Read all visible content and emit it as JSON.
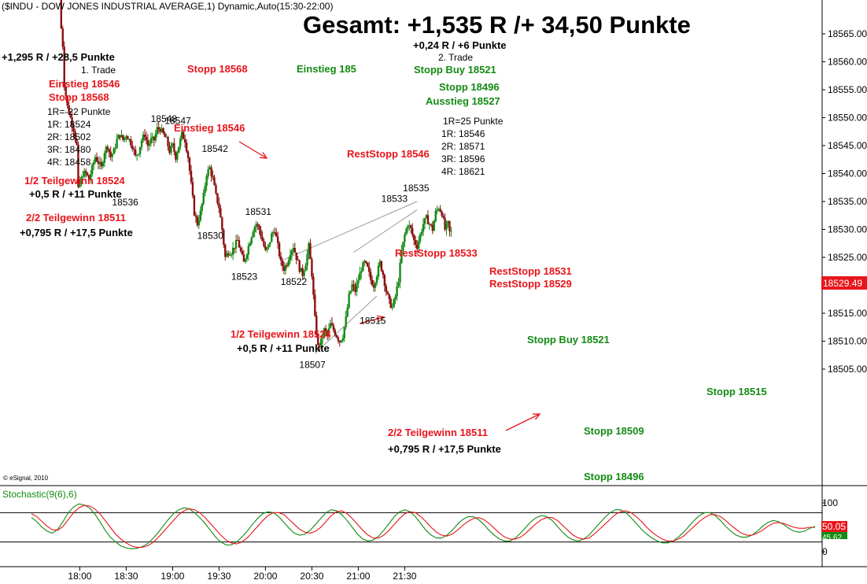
{
  "header": {
    "instrument": "($INDU - DOW JONES INDUSTRIAL AVERAGE,1) Dynamic,Auto(15:30-22:00)",
    "summary": "Gesamt: +1,535 R /+ 34,50 Punkte",
    "copyright": "© eSignal, 2010"
  },
  "colors": {
    "up_candle": "#138a13",
    "down_candle": "#8b1010",
    "stoch_k": "#138a13",
    "stoch_d": "#e8151b",
    "annotation_red": "#e8151b",
    "annotation_green": "#138a13",
    "current_price_bg": "#e8151b"
  },
  "annotations": {
    "t1_result": "+1,295 R / +28,5 Punkte",
    "t1_label": "1. Trade",
    "t1_entry": "Einstieg 18546",
    "t1_stop": "Stopp 18568",
    "t1_r": "1R=-22 Punkte",
    "t1_r1": "1R: 18524",
    "t1_r2": "2R: 18502",
    "t1_r3": "3R: 18480",
    "t1_r4": "4R: 18458",
    "t1_partial1": "1/2 Teilgewinn 18524",
    "t1_partial1_result": "+0,5 R / +11 Punkte",
    "t1_partial2": "2/2 Teilgewinn 18511",
    "t1_partial2_result": "+0,795 R / +17,5 Punkte",
    "stop_18568": "Stopp 18568",
    "entry_185": "Einstieg 185",
    "entry_18546": "Einstieg 18546",
    "t2_result": "+0,24 R / +6 Punkte",
    "t2_label": "2. Trade",
    "t2_stop_buy": "Stopp Buy 18521",
    "t2_stop": "Stopp 18496",
    "t2_exit": "Ausstieg 18527",
    "t2_r": "1R=25 Punkte",
    "t2_r1": "1R: 18546",
    "t2_r2": "2R: 18571",
    "t2_r3": "3R: 18596",
    "t2_r4": "4R: 18621",
    "reststopp_18546": "RestStopp 18546",
    "reststopp_18533": "RestStopp 18533",
    "reststopp_18531": "RestStopp 18531",
    "reststopp_18529": "RestStopp 18529",
    "partial1_mid": "1/2 Teilgewinn 18524",
    "partial1_mid_result": "+0,5 R / +11 Punkte",
    "partial2_mid": "2/2 Teilgewinn 18511",
    "partial2_mid_result": "+0,795 R / +17,5 Punkte",
    "stop_buy_18521": "Stopp Buy 18521",
    "stopp_18509": "Stopp 18509",
    "stopp_18515": "Stopp 18515",
    "stopp_18496": "Stopp 18496"
  },
  "price_labels": [
    {
      "text": "18548",
      "t": "18:54",
      "p": 18549.2
    },
    {
      "text": "18547",
      "t": "19:03",
      "p": 18548.9
    },
    {
      "text": "18536",
      "t": "18:29",
      "p": 18534.3
    },
    {
      "text": "18542",
      "t": "19:27",
      "p": 18543.9
    },
    {
      "text": "18530",
      "t": "19:24",
      "p": 18528.3
    },
    {
      "text": "18531",
      "t": "19:55",
      "p": 18532.6
    },
    {
      "text": "18523",
      "t": "19:46",
      "p": 18521.0
    },
    {
      "text": "18522",
      "t": "20:18",
      "p": 18520.1
    },
    {
      "text": "18507",
      "t": "20:30",
      "p": 18505.2
    },
    {
      "text": "18515",
      "t": "21:09",
      "p": 18513.1
    },
    {
      "text": "18533",
      "t": "21:23",
      "p": 18534.9
    },
    {
      "text": "18535",
      "t": "21:37",
      "p": 18536.8
    }
  ],
  "current_price": "18529.49",
  "stoch": {
    "label": "Stochastic(9(6),6)",
    "value_d": "50.05",
    "value_k": "45.62"
  },
  "chart_data": [
    {
      "type": "candlestick",
      "title": "($INDU - DOW JONES INDUSTRIAL AVERAGE,1) Dynamic,Auto(15:30-22:00)",
      "x_range": [
        "17:30",
        "22:00"
      ],
      "ylim": [
        18501,
        18569
      ],
      "y_ticks": [
        18505,
        18510,
        18515,
        18520,
        18525,
        18530,
        18535,
        18540,
        18545,
        18550,
        18555,
        18560,
        18565
      ],
      "x_ticks": [
        "18:00",
        "18:30",
        "19:00",
        "19:30",
        "20:00",
        "20:30",
        "21:00",
        "21:30"
      ],
      "grid": false,
      "trend_lines": [
        {
          "from": [
            "20:32",
            18507.8
          ],
          "to": [
            "21:12",
            18518.1
          ]
        },
        {
          "from": [
            "20:12",
            18524.6
          ],
          "to": [
            "21:38",
            18535.0
          ]
        },
        {
          "from": [
            "20:57",
            18525.9
          ],
          "to": [
            "21:38",
            18533.5
          ]
        }
      ],
      "path": [
        [
          "17:48",
          18584
        ],
        [
          "17:49",
          18566
        ],
        [
          "17:50",
          18563
        ],
        [
          "17:51",
          18556
        ],
        [
          "17:53",
          18552
        ],
        [
          "17:55",
          18550
        ],
        [
          "17:57",
          18548
        ],
        [
          "17:59",
          18545
        ],
        [
          "18:00",
          18537
        ],
        [
          "18:01",
          18538
        ],
        [
          "18:03",
          18540
        ],
        [
          "18:05",
          18540
        ],
        [
          "18:07",
          18539
        ],
        [
          "18:09",
          18541
        ],
        [
          "18:11",
          18543
        ],
        [
          "18:13",
          18542
        ],
        [
          "18:15",
          18541
        ],
        [
          "18:17",
          18544
        ],
        [
          "18:19",
          18545
        ],
        [
          "18:21",
          18543
        ],
        [
          "18:23",
          18544
        ],
        [
          "18:25",
          18546
        ],
        [
          "18:27",
          18547
        ],
        [
          "18:29",
          18546
        ],
        [
          "18:31",
          18547
        ],
        [
          "18:33",
          18546
        ],
        [
          "18:35",
          18545
        ],
        [
          "18:37",
          18543
        ],
        [
          "18:39",
          18544
        ],
        [
          "18:41",
          18546
        ],
        [
          "18:43",
          18547
        ],
        [
          "18:45",
          18545
        ],
        [
          "18:47",
          18546
        ],
        [
          "18:49",
          18546
        ],
        [
          "18:51",
          18548
        ],
        [
          "18:53",
          18548
        ],
        [
          "18:55",
          18547
        ],
        [
          "18:57",
          18546
        ],
        [
          "18:59",
          18544
        ],
        [
          "19:01",
          18545
        ],
        [
          "19:03",
          18543
        ],
        [
          "19:05",
          18545
        ],
        [
          "19:07",
          18547
        ],
        [
          "19:09",
          18546
        ],
        [
          "19:11",
          18543
        ],
        [
          "19:13",
          18538
        ],
        [
          "19:15",
          18533
        ],
        [
          "19:17",
          18531
        ],
        [
          "19:19",
          18533
        ],
        [
          "19:21",
          18536
        ],
        [
          "19:23",
          18540
        ],
        [
          "19:25",
          18541
        ],
        [
          "19:27",
          18539
        ],
        [
          "19:29",
          18536
        ],
        [
          "19:31",
          18534
        ],
        [
          "19:33",
          18530
        ],
        [
          "19:35",
          18525
        ],
        [
          "19:37",
          18526
        ],
        [
          "19:39",
          18526
        ],
        [
          "19:41",
          18527
        ],
        [
          "19:43",
          18528
        ],
        [
          "19:45",
          18526
        ],
        [
          "19:47",
          18524
        ],
        [
          "19:49",
          18526
        ],
        [
          "19:51",
          18528
        ],
        [
          "19:53",
          18530
        ],
        [
          "19:55",
          18531
        ],
        [
          "19:57",
          18530
        ],
        [
          "19:59",
          18528
        ],
        [
          "20:01",
          18526
        ],
        [
          "20:03",
          18527
        ],
        [
          "20:05",
          18529
        ],
        [
          "20:07",
          18530
        ],
        [
          "20:09",
          18527
        ],
        [
          "20:11",
          18524
        ],
        [
          "20:13",
          18523
        ],
        [
          "20:15",
          18524
        ],
        [
          "20:17",
          18526
        ],
        [
          "20:19",
          18527
        ],
        [
          "20:21",
          18525
        ],
        [
          "20:23",
          18523
        ],
        [
          "20:25",
          18522
        ],
        [
          "20:27",
          18524
        ],
        [
          "20:29",
          18527
        ],
        [
          "20:31",
          18522
        ],
        [
          "20:33",
          18514
        ],
        [
          "20:35",
          18509
        ],
        [
          "20:37",
          18510
        ],
        [
          "20:39",
          18512
        ],
        [
          "20:41",
          18511
        ],
        [
          "20:43",
          18513
        ],
        [
          "20:45",
          18512
        ],
        [
          "20:47",
          18511
        ],
        [
          "20:49",
          18510
        ],
        [
          "20:51",
          18511
        ],
        [
          "20:53",
          18514
        ],
        [
          "20:55",
          18518
        ],
        [
          "20:57",
          18520
        ],
        [
          "20:59",
          18519
        ],
        [
          "21:01",
          18521
        ],
        [
          "21:03",
          18523
        ],
        [
          "21:05",
          18524
        ],
        [
          "21:07",
          18523
        ],
        [
          "21:09",
          18521
        ],
        [
          "21:11",
          18520
        ],
        [
          "21:13",
          18522
        ],
        [
          "21:15",
          18524
        ],
        [
          "21:17",
          18522
        ],
        [
          "21:19",
          18519
        ],
        [
          "21:21",
          18517
        ],
        [
          "21:23",
          18516
        ],
        [
          "21:25",
          18518
        ],
        [
          "21:27",
          18521
        ],
        [
          "21:29",
          18526
        ],
        [
          "21:31",
          18529
        ],
        [
          "21:33",
          18531
        ],
        [
          "21:35",
          18530
        ],
        [
          "21:37",
          18528
        ],
        [
          "21:39",
          18527
        ],
        [
          "21:41",
          18529
        ],
        [
          "21:43",
          18531
        ],
        [
          "21:45",
          18532
        ],
        [
          "21:47",
          18531
        ],
        [
          "21:49",
          18530
        ],
        [
          "21:51",
          18533
        ],
        [
          "21:53",
          18534
        ],
        [
          "21:55",
          18533
        ],
        [
          "21:57",
          18530
        ],
        [
          "21:59",
          18531
        ],
        [
          "22:00",
          18529.49
        ]
      ]
    },
    {
      "type": "line",
      "title": "Stochastic(9(6),6)",
      "ylim": [
        0,
        100
      ],
      "y_ticks": [
        0,
        50,
        100
      ],
      "reference_levels": [
        20,
        80
      ],
      "series": [
        {
          "name": "%K",
          "y": [
            70,
            62,
            50,
            42,
            38,
            46,
            62,
            80,
            92,
            98,
            96,
            90,
            78,
            62,
            44,
            30,
            20,
            12,
            8,
            6,
            7,
            10,
            16,
            26,
            38,
            52,
            66,
            78,
            86,
            90,
            88,
            80,
            70,
            58,
            44,
            30,
            20,
            14,
            14,
            20,
            30,
            42,
            56,
            68,
            78,
            82,
            80,
            72,
            60,
            48,
            38,
            34,
            36,
            44,
            56,
            68,
            80,
            86,
            84,
            76,
            64,
            50,
            36,
            26,
            22,
            24,
            32,
            44,
            58,
            72,
            82,
            86,
            82,
            72,
            58,
            44,
            34,
            28,
            28,
            34,
            44,
            56,
            66,
            72,
            72,
            66,
            56,
            44,
            34,
            26,
            22,
            22,
            28,
            38,
            50,
            62,
            70,
            74,
            72,
            64,
            52,
            40,
            30,
            24,
            22,
            26,
            34,
            46,
            58,
            70,
            80,
            86,
            86,
            80,
            70,
            58,
            46,
            36,
            28,
            22,
            18,
            18,
            22,
            30,
            40,
            52,
            64,
            74,
            80,
            80,
            74,
            64,
            52,
            42,
            34,
            30,
            30,
            34,
            42,
            52,
            60,
            64,
            62,
            56,
            48,
            42,
            40,
            42,
            48,
            52
          ]
        },
        {
          "name": "%D",
          "y": [
            78,
            72,
            62,
            52,
            45,
            44,
            52,
            66,
            80,
            90,
            95,
            94,
            88,
            78,
            64,
            50,
            36,
            26,
            18,
            12,
            9,
            9,
            12,
            18,
            28,
            40,
            52,
            64,
            76,
            84,
            88,
            86,
            80,
            70,
            58,
            46,
            34,
            24,
            18,
            16,
            20,
            28,
            40,
            52,
            64,
            74,
            80,
            80,
            76,
            66,
            56,
            46,
            40,
            38,
            42,
            50,
            62,
            74,
            82,
            84,
            78,
            68,
            56,
            44,
            34,
            28,
            28,
            34,
            44,
            56,
            68,
            78,
            82,
            80,
            72,
            62,
            50,
            40,
            34,
            32,
            36,
            44,
            54,
            62,
            68,
            70,
            66,
            58,
            48,
            38,
            30,
            26,
            26,
            30,
            38,
            48,
            58,
            66,
            70,
            70,
            64,
            54,
            44,
            34,
            28,
            26,
            28,
            36,
            46,
            56,
            66,
            76,
            82,
            84,
            80,
            72,
            62,
            50,
            40,
            32,
            26,
            22,
            22,
            26,
            32,
            42,
            52,
            62,
            70,
            76,
            76,
            72,
            64,
            54,
            46,
            38,
            34,
            34,
            38,
            44,
            52,
            58,
            60,
            58,
            54,
            50,
            48,
            48,
            50,
            50
          ]
        }
      ]
    }
  ]
}
